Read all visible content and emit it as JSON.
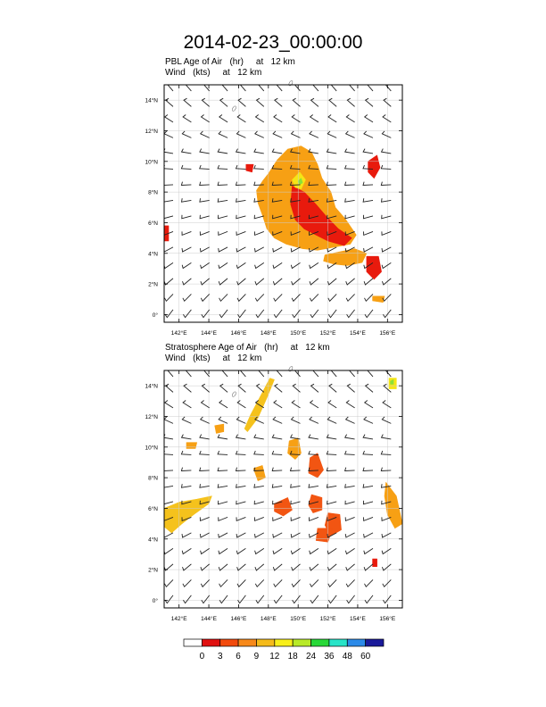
{
  "page_title": "2014-02-23_00:00:00",
  "chart_data": [
    {
      "type": "map",
      "id": "pbl",
      "title_line1": "PBL Age of Air   (hr)     at   12 km",
      "title_line2": "Wind   (kts)     at   12 km",
      "field": "PBL age of air",
      "units": "hr",
      "level": "12 km",
      "xlim": [
        141,
        157
      ],
      "ylim": [
        -0.5,
        15
      ],
      "x_ticks": [
        142,
        144,
        146,
        148,
        150,
        152,
        154,
        156
      ],
      "x_tick_labels": [
        "142°E",
        "144°E",
        "146°E",
        "148°E",
        "150°E",
        "152°E",
        "154°E",
        "156°E"
      ],
      "y_ticks": [
        0,
        2,
        4,
        6,
        8,
        10,
        12,
        14
      ],
      "y_tick_labels": [
        "0°",
        "2°N",
        "4°N",
        "6°N",
        "8°N",
        "10°N",
        "12°N",
        "14°N"
      ],
      "wind_barbs": true,
      "patches": [
        {
          "value": 6,
          "color": "#f7a014",
          "lonlat": [
            [
              148.0,
              9.2
            ],
            [
              148.6,
              10.1
            ],
            [
              149.3,
              10.8
            ],
            [
              150.2,
              11.0
            ],
            [
              150.9,
              10.6
            ],
            [
              151.3,
              9.8
            ],
            [
              151.6,
              8.9
            ],
            [
              152.2,
              8.0
            ],
            [
              152.5,
              7.0
            ],
            [
              153.2,
              6.2
            ],
            [
              153.9,
              5.2
            ],
            [
              153.5,
              4.6
            ],
            [
              152.4,
              4.4
            ],
            [
              151.3,
              4.2
            ],
            [
              150.3,
              4.3
            ],
            [
              149.2,
              4.6
            ],
            [
              148.4,
              5.0
            ],
            [
              147.9,
              5.6
            ],
            [
              147.6,
              6.5
            ],
            [
              147.3,
              7.3
            ],
            [
              147.2,
              8.1
            ],
            [
              147.6,
              8.7
            ]
          ]
        },
        {
          "value": 3,
          "color": "#e81a0d",
          "lonlat": [
            [
              149.6,
              8.4
            ],
            [
              150.4,
              8.0
            ],
            [
              151.2,
              7.2
            ],
            [
              151.9,
              6.4
            ],
            [
              152.7,
              5.6
            ],
            [
              153.6,
              5.0
            ],
            [
              153.1,
              4.5
            ],
            [
              152.0,
              4.8
            ],
            [
              151.2,
              5.2
            ],
            [
              150.4,
              5.6
            ],
            [
              149.8,
              6.2
            ],
            [
              149.5,
              7.2
            ]
          ]
        },
        {
          "value": 12,
          "color": "#f5e516",
          "lonlat": [
            [
              149.6,
              8.8
            ],
            [
              150.1,
              9.3
            ],
            [
              150.5,
              8.8
            ],
            [
              150.2,
              8.2
            ],
            [
              149.8,
              8.3
            ]
          ]
        },
        {
          "value": 24,
          "color": "#8ce03a",
          "lonlat": [
            [
              150.0,
              8.7
            ],
            [
              150.2,
              8.9
            ],
            [
              150.3,
              8.6
            ],
            [
              150.1,
              8.5
            ]
          ]
        },
        {
          "value": 9,
          "color": "#f7a014",
          "lonlat": [
            [
              151.8,
              3.9
            ],
            [
              152.8,
              4.1
            ],
            [
              153.8,
              4.3
            ],
            [
              154.6,
              4.0
            ],
            [
              154.3,
              3.4
            ],
            [
              153.3,
              3.2
            ],
            [
              152.4,
              3.3
            ],
            [
              151.7,
              3.5
            ]
          ]
        },
        {
          "value": 3,
          "color": "#e81a0d",
          "lonlat": [
            [
              154.7,
              10.0
            ],
            [
              155.3,
              10.4
            ],
            [
              155.5,
              9.6
            ],
            [
              155.1,
              8.9
            ],
            [
              154.7,
              9.3
            ]
          ]
        },
        {
          "value": 3,
          "color": "#e81a0d",
          "lonlat": [
            [
              154.6,
              3.8
            ],
            [
              155.4,
              3.8
            ],
            [
              155.6,
              2.8
            ],
            [
              155.1,
              2.3
            ],
            [
              154.6,
              2.8
            ]
          ]
        },
        {
          "value": 6,
          "color": "#f7a014",
          "lonlat": [
            [
              155.0,
              1.2
            ],
            [
              155.8,
              1.2
            ],
            [
              155.7,
              0.8
            ],
            [
              155.0,
              0.9
            ]
          ]
        },
        {
          "value": 3,
          "color": "#e81a0d",
          "lonlat": [
            [
              146.5,
              9.8
            ],
            [
              147.0,
              9.8
            ],
            [
              146.9,
              9.3
            ],
            [
              146.5,
              9.4
            ]
          ]
        },
        {
          "value": 3,
          "color": "#e81a0d",
          "lonlat": [
            [
              141.0,
              5.8
            ],
            [
              141.3,
              5.8
            ],
            [
              141.3,
              4.8
            ],
            [
              141.0,
              4.8
            ]
          ]
        }
      ]
    },
    {
      "type": "map",
      "id": "stratosphere",
      "title_line1": "Stratosphere Age of Air   (hr)     at   12 km",
      "title_line2": "Wind   (kts)     at   12 km",
      "field": "Stratosphere age of air",
      "units": "hr",
      "level": "12 km",
      "xlim": [
        141,
        157
      ],
      "ylim": [
        -0.5,
        15
      ],
      "x_ticks": [
        142,
        144,
        146,
        148,
        150,
        152,
        154,
        156
      ],
      "x_tick_labels": [
        "142°E",
        "144°E",
        "146°E",
        "148°E",
        "150°E",
        "152°E",
        "154°E",
        "156°E"
      ],
      "y_ticks": [
        0,
        2,
        4,
        6,
        8,
        10,
        12,
        14
      ],
      "y_tick_labels": [
        "0°",
        "2°N",
        "4°N",
        "6°N",
        "8°N",
        "10°N",
        "12°N",
        "14°N"
      ],
      "wind_barbs": true,
      "patches": [
        {
          "value": 9,
          "color": "#f5c21c",
          "lonlat": [
            [
              141.0,
              6.0
            ],
            [
              142.0,
              6.4
            ],
            [
              143.2,
              6.6
            ],
            [
              144.2,
              6.8
            ],
            [
              144.0,
              6.3
            ],
            [
              143.0,
              5.6
            ],
            [
              142.2,
              5.0
            ],
            [
              141.5,
              4.4
            ],
            [
              141.0,
              4.8
            ]
          ]
        },
        {
          "value": 9,
          "color": "#f5c21c",
          "lonlat": [
            [
              146.6,
              11.0
            ],
            [
              147.3,
              11.9
            ],
            [
              147.9,
              13.2
            ],
            [
              148.4,
              14.4
            ],
            [
              148.1,
              14.5
            ],
            [
              147.4,
              13.2
            ],
            [
              146.8,
              12.1
            ],
            [
              146.4,
              11.2
            ]
          ]
        },
        {
          "value": 6,
          "color": "#f7a014",
          "lonlat": [
            [
              149.4,
              10.4
            ],
            [
              150.0,
              10.6
            ],
            [
              150.2,
              9.6
            ],
            [
              149.8,
              9.2
            ],
            [
              149.3,
              9.6
            ]
          ]
        },
        {
          "value": 6,
          "color": "#f7a014",
          "lonlat": [
            [
              147.0,
              8.6
            ],
            [
              147.6,
              8.8
            ],
            [
              147.8,
              8.0
            ],
            [
              147.3,
              7.8
            ]
          ]
        },
        {
          "value": 3,
          "color": "#f25512",
          "lonlat": [
            [
              150.8,
              9.3
            ],
            [
              151.3,
              9.6
            ],
            [
              151.7,
              8.5
            ],
            [
              151.3,
              8.0
            ],
            [
              150.7,
              8.3
            ]
          ]
        },
        {
          "value": 3,
          "color": "#f25512",
          "lonlat": [
            [
              148.4,
              6.3
            ],
            [
              149.3,
              6.7
            ],
            [
              149.6,
              5.9
            ],
            [
              149.0,
              5.5
            ],
            [
              148.4,
              5.8
            ]
          ]
        },
        {
          "value": 3,
          "color": "#f25512",
          "lonlat": [
            [
              150.9,
              6.9
            ],
            [
              151.6,
              6.7
            ],
            [
              151.6,
              5.9
            ],
            [
              151.0,
              5.7
            ],
            [
              150.7,
              6.2
            ]
          ]
        },
        {
          "value": 3,
          "color": "#f25512",
          "lonlat": [
            [
              152.0,
              5.7
            ],
            [
              152.8,
              5.6
            ],
            [
              152.9,
              4.6
            ],
            [
              152.2,
              4.2
            ],
            [
              151.8,
              4.9
            ]
          ]
        },
        {
          "value": 3,
          "color": "#f25512",
          "lonlat": [
            [
              151.3,
              4.7
            ],
            [
              152.3,
              4.7
            ],
            [
              152.0,
              3.8
            ],
            [
              151.2,
              3.9
            ]
          ]
        },
        {
          "value": 6,
          "color": "#f7a014",
          "lonlat": [
            [
              155.9,
              7.7
            ],
            [
              156.6,
              6.8
            ],
            [
              157.0,
              5.0
            ],
            [
              156.5,
              4.7
            ],
            [
              156.0,
              5.6
            ],
            [
              155.8,
              6.8
            ]
          ]
        },
        {
          "value": 3,
          "color": "#e81a0d",
          "lonlat": [
            [
              155.0,
              2.7
            ],
            [
              155.3,
              2.7
            ],
            [
              155.3,
              2.2
            ],
            [
              155.0,
              2.2
            ]
          ]
        },
        {
          "value": 6,
          "color": "#f7a014",
          "lonlat": [
            [
              144.4,
              11.4
            ],
            [
              145.0,
              11.5
            ],
            [
              145.0,
              11.0
            ],
            [
              144.5,
              10.9
            ]
          ]
        },
        {
          "value": 6,
          "color": "#f7a014",
          "lonlat": [
            [
              142.5,
              10.3
            ],
            [
              143.2,
              10.3
            ],
            [
              143.1,
              9.9
            ],
            [
              142.5,
              9.9
            ]
          ]
        },
        {
          "value": 12,
          "color": "#f5e516",
          "lonlat": [
            [
              156.1,
              14.5
            ],
            [
              156.6,
              14.5
            ],
            [
              156.6,
              13.8
            ],
            [
              156.1,
              13.8
            ]
          ]
        },
        {
          "value": 24,
          "color": "#8ce03a",
          "lonlat": [
            [
              156.2,
              14.3
            ],
            [
              156.4,
              14.4
            ],
            [
              156.4,
              14.1
            ],
            [
              156.2,
              14.1
            ]
          ]
        }
      ]
    }
  ],
  "colorbar": {
    "labels": [
      "0",
      "3",
      "6",
      "9",
      "12",
      "18",
      "24",
      "36",
      "48",
      "60"
    ],
    "colors": [
      "#ffffff",
      "#e01010",
      "#f24a0c",
      "#f7891a",
      "#f5bb1a",
      "#f8ef1a",
      "#b8ea28",
      "#28d838",
      "#28e4c8",
      "#2c8ae8",
      "#1a1a9a"
    ]
  },
  "colors": {
    "frame": "#000000",
    "grid": "#cccccc",
    "barb": "#222222",
    "coast": "#666666"
  }
}
